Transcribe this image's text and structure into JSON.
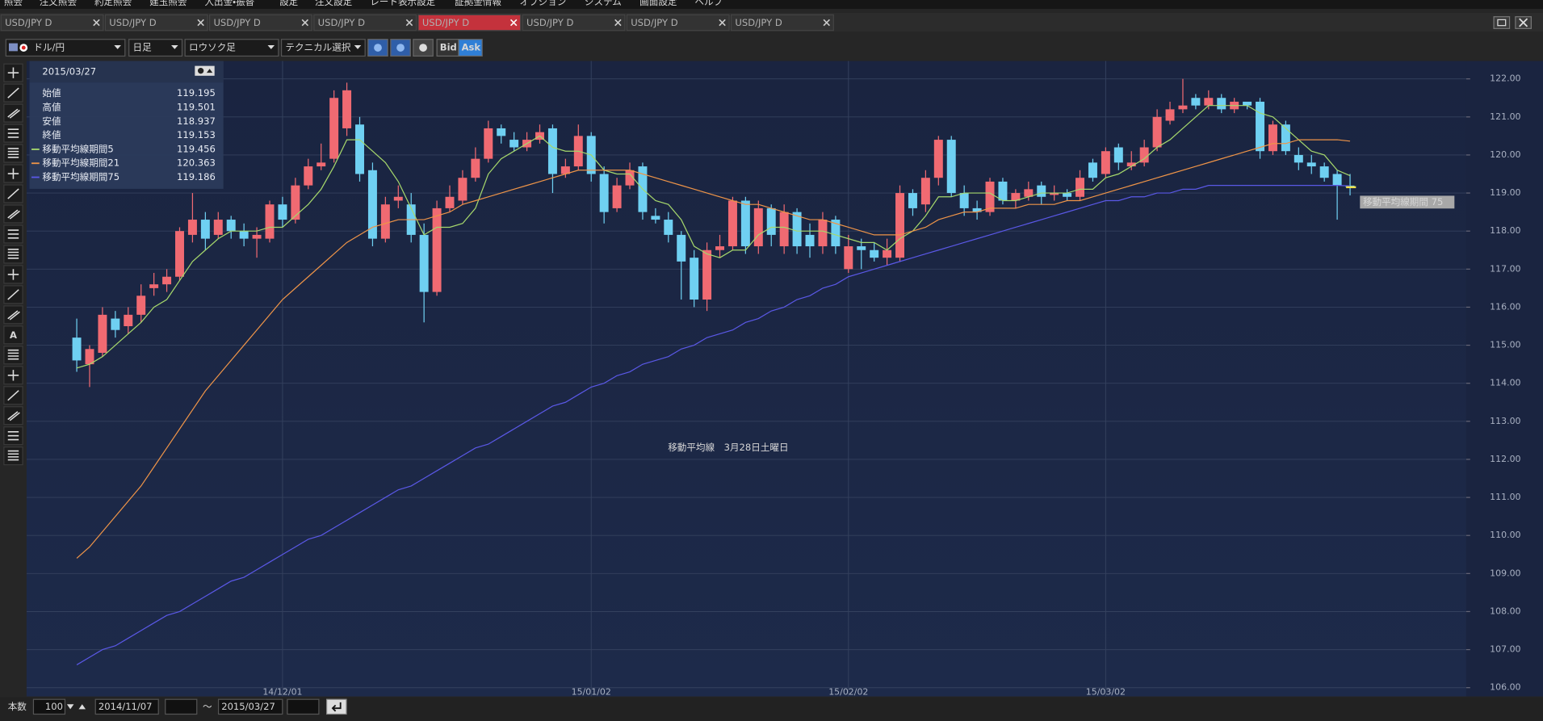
{
  "menu": [
    "照会",
    "注文照会",
    "約定照会",
    "建玉照会",
    "入出金・振替",
    "設定",
    "注文設定",
    "レート表示設定",
    "証拠金情報",
    "オプション",
    "システム",
    "画面設定",
    "ヘルプ"
  ],
  "tabs": [
    "USD/JPY D",
    "USD/JPY D",
    "USD/JPY D",
    "USD/JPY D",
    "USD/JPY D",
    "USD/JPY D",
    "USD/JPY D",
    "USD/JPY D"
  ],
  "active_tab": 4,
  "toolbar": {
    "pair": "ドル/円",
    "period": "日足",
    "chart_kind": "ロウソク足",
    "technical": "テクニカル選択",
    "bid": "Bid",
    "ask": "Ask",
    "text_tool": "A"
  },
  "info_panel": {
    "date": "2015/03/27",
    "rows": [
      {
        "label": "始値",
        "value": 119.195
      },
      {
        "label": "高値",
        "value": 119.501
      },
      {
        "label": "安値",
        "value": 118.937
      },
      {
        "label": "終値",
        "value": 119.153
      }
    ],
    "ma_values": [
      119.456,
      120.363,
      119.186
    ]
  },
  "footer": {
    "count_label": "本数",
    "count": 100,
    "from": "2014/11/07",
    "tilde": "～",
    "to": "2015/03/27"
  },
  "chart_data": {
    "type": "candlestick",
    "center_text": "移動平均線　3月28日土曜日",
    "annotation": "移動平均線期間 75",
    "up_color": "#f06a72",
    "down_color": "#6fd0f2",
    "grid": true,
    "ylim": [
      105.77,
      122.47
    ],
    "yticks": [
      {
        "value": 106,
        "label": "106.00"
      },
      {
        "value": 107,
        "label": "107.00"
      },
      {
        "value": 108,
        "label": "108.00"
      },
      {
        "value": 109,
        "label": "109.00"
      },
      {
        "value": 110,
        "label": "110.00"
      },
      {
        "value": 111,
        "label": "111.00"
      },
      {
        "value": 112,
        "label": "112.00"
      },
      {
        "value": 113,
        "label": "113.00"
      },
      {
        "value": 114,
        "label": "114.00"
      },
      {
        "value": 115,
        "label": "115.00"
      },
      {
        "value": 116,
        "label": "116.00"
      },
      {
        "value": 117,
        "label": "117.00"
      },
      {
        "value": 118,
        "label": "118.00"
      },
      {
        "value": 119,
        "label": "119.00"
      },
      {
        "value": 120,
        "label": "120.00"
      },
      {
        "value": 121,
        "label": "121.00"
      },
      {
        "value": 122,
        "label": "122.00"
      }
    ],
    "categories": [
      null,
      null,
      null,
      null,
      null,
      null,
      null,
      null,
      null,
      null,
      null,
      null,
      null,
      null,
      null,
      null,
      "14/12/01",
      null,
      null,
      null,
      null,
      null,
      null,
      null,
      null,
      null,
      null,
      null,
      null,
      null,
      null,
      null,
      null,
      null,
      null,
      null,
      null,
      null,
      null,
      null,
      "15/01/02",
      null,
      null,
      null,
      null,
      null,
      null,
      null,
      null,
      null,
      null,
      null,
      null,
      null,
      null,
      null,
      null,
      null,
      null,
      null,
      "15/02/02",
      null,
      null,
      null,
      null,
      null,
      null,
      null,
      null,
      null,
      null,
      null,
      null,
      null,
      null,
      null,
      null,
      null,
      null,
      null,
      "15/03/02",
      null,
      null,
      null,
      null,
      null,
      null,
      null,
      null,
      null,
      null,
      null,
      null,
      null,
      null,
      null,
      null,
      null,
      null,
      null
    ],
    "open": [
      115.2,
      114.5,
      114.8,
      115.7,
      115.5,
      115.8,
      116.5,
      116.6,
      116.8,
      117.9,
      118.3,
      117.9,
      118.3,
      118.0,
      117.8,
      117.8,
      118.7,
      118.3,
      119.2,
      119.7,
      119.9,
      120.7,
      120.8,
      119.6,
      117.8,
      118.8,
      118.7,
      117.9,
      116.4,
      118.6,
      118.8,
      119.4,
      119.9,
      120.7,
      120.4,
      120.2,
      120.4,
      120.7,
      119.5,
      119.7,
      120.5,
      119.5,
      118.6,
      119.2,
      119.7,
      118.4,
      118.3,
      117.9,
      117.3,
      116.2,
      117.5,
      117.6,
      118.8,
      117.6,
      118.6,
      117.6,
      118.5,
      117.9,
      117.6,
      118.3,
      117.0,
      117.6,
      117.5,
      117.3,
      117.3,
      119.0,
      118.7,
      119.4,
      120.4,
      119.0,
      118.6,
      118.5,
      119.3,
      118.8,
      118.9,
      119.2,
      118.95,
      119.0,
      118.9,
      119.8,
      119.5,
      120.2,
      119.7,
      119.8,
      120.2,
      120.9,
      121.2,
      121.5,
      121.3,
      121.5,
      121.2,
      121.4,
      121.4,
      120.1,
      120.8,
      120.0,
      119.8,
      119.7,
      119.5,
      119.195
    ],
    "high": [
      115.7,
      115.0,
      116.0,
      115.9,
      116.0,
      116.6,
      116.9,
      117.0,
      118.1,
      119.0,
      118.5,
      118.5,
      118.4,
      118.2,
      118.1,
      118.8,
      118.9,
      119.4,
      119.9,
      120.3,
      121.7,
      121.9,
      121.0,
      119.8,
      118.9,
      119.2,
      119.0,
      118.2,
      118.8,
      119.2,
      119.6,
      120.2,
      120.9,
      120.8,
      120.6,
      120.6,
      120.8,
      120.8,
      119.9,
      120.8,
      120.6,
      119.7,
      119.4,
      119.8,
      119.8,
      118.6,
      118.5,
      118.0,
      117.5,
      117.7,
      117.9,
      118.9,
      118.9,
      118.8,
      118.7,
      118.7,
      118.6,
      118.2,
      118.5,
      118.4,
      117.9,
      117.8,
      117.7,
      117.8,
      119.2,
      119.1,
      119.6,
      120.5,
      120.5,
      119.2,
      118.8,
      119.4,
      119.4,
      119.1,
      119.3,
      119.3,
      119.2,
      119.1,
      119.6,
      119.9,
      120.2,
      120.3,
      120.1,
      120.4,
      121.2,
      121.4,
      122.0,
      121.6,
      121.7,
      121.6,
      121.5,
      121.4,
      121.5,
      120.9,
      120.9,
      120.2,
      120.0,
      119.8,
      119.6,
      119.501
    ],
    "low": [
      114.3,
      113.9,
      114.7,
      115.2,
      115.3,
      115.6,
      116.3,
      116.4,
      116.7,
      117.7,
      117.5,
      117.8,
      117.8,
      117.6,
      117.3,
      117.7,
      118.1,
      118.2,
      119.1,
      119.6,
      119.8,
      120.5,
      119.3,
      117.6,
      117.7,
      118.6,
      117.7,
      115.6,
      116.3,
      118.5,
      118.7,
      119.3,
      119.8,
      120.3,
      120.1,
      120.1,
      120.3,
      119.0,
      119.4,
      119.6,
      119.3,
      118.2,
      118.5,
      119.1,
      118.3,
      118.2,
      117.7,
      116.2,
      116.0,
      115.9,
      117.3,
      117.5,
      117.4,
      117.4,
      117.6,
      117.4,
      117.4,
      117.3,
      117.4,
      117.4,
      116.9,
      117.0,
      117.2,
      117.1,
      117.2,
      118.4,
      118.5,
      119.2,
      118.9,
      118.4,
      118.3,
      118.4,
      118.7,
      118.6,
      118.8,
      118.7,
      118.8,
      118.8,
      118.8,
      119.3,
      119.4,
      119.6,
      119.6,
      119.7,
      120.1,
      120.8,
      121.1,
      121.2,
      121.2,
      121.1,
      121.1,
      121.2,
      119.9,
      120.0,
      120.0,
      119.6,
      119.5,
      119.3,
      118.3,
      118.937
    ],
    "close": [
      114.6,
      114.9,
      115.8,
      115.4,
      115.8,
      116.3,
      116.6,
      116.8,
      118.0,
      118.3,
      117.8,
      118.3,
      118.0,
      117.8,
      117.9,
      118.7,
      118.3,
      119.2,
      119.7,
      119.8,
      121.5,
      121.7,
      119.5,
      117.8,
      118.7,
      118.9,
      117.9,
      116.4,
      118.6,
      118.9,
      119.4,
      119.9,
      120.7,
      120.5,
      120.2,
      120.4,
      120.6,
      119.5,
      119.7,
      120.5,
      119.5,
      118.5,
      119.2,
      119.6,
      118.5,
      118.3,
      117.9,
      117.2,
      116.2,
      117.5,
      117.6,
      118.8,
      117.6,
      118.6,
      117.9,
      118.5,
      117.6,
      117.6,
      118.3,
      117.6,
      117.6,
      117.5,
      117.3,
      117.5,
      119.0,
      118.6,
      119.4,
      120.4,
      119.0,
      118.6,
      118.5,
      119.3,
      118.8,
      119.0,
      119.1,
      118.9,
      119.0,
      118.9,
      119.4,
      119.4,
      120.1,
      119.8,
      119.8,
      120.2,
      121.0,
      121.2,
      121.3,
      121.3,
      121.5,
      121.2,
      121.4,
      121.3,
      120.1,
      120.8,
      120.1,
      119.8,
      119.7,
      119.4,
      119.2,
      119.153
    ],
    "series": [
      {
        "name": "移動平均線期間5",
        "color": "#a6d86c",
        "values": [
          114.4,
          114.5,
          114.7,
          115.0,
          115.3,
          115.6,
          116.0,
          116.2,
          116.7,
          117.2,
          117.5,
          117.8,
          118.0,
          118.0,
          118.0,
          118.1,
          118.1,
          118.4,
          118.7,
          119.1,
          119.7,
          120.4,
          120.4,
          120.1,
          119.8,
          119.3,
          118.6,
          117.9,
          118.1,
          118.1,
          118.2,
          118.6,
          119.5,
          119.9,
          120.1,
          120.3,
          120.5,
          120.2,
          120.1,
          120.1,
          120.0,
          119.6,
          119.5,
          119.5,
          119.1,
          118.8,
          118.7,
          118.3,
          117.6,
          117.4,
          117.3,
          117.5,
          117.5,
          117.9,
          118.1,
          118.1,
          118.0,
          118.0,
          118.0,
          117.9,
          117.8,
          117.7,
          117.7,
          117.5,
          117.8,
          118.0,
          118.4,
          118.9,
          118.9,
          119.0,
          119.0,
          119.0,
          118.8,
          118.8,
          118.9,
          119.0,
          119.0,
          119.0,
          119.1,
          119.1,
          119.4,
          119.5,
          119.7,
          119.9,
          120.2,
          120.4,
          120.7,
          121.0,
          121.3,
          121.3,
          121.3,
          121.3,
          121.1,
          121.0,
          120.7,
          120.4,
          120.1,
          120.0,
          119.6,
          119.456
        ]
      },
      {
        "name": "移動平均線期間21",
        "color": "#ee9448",
        "values": [
          109.4,
          109.7,
          110.1,
          110.5,
          110.9,
          111.3,
          111.8,
          112.3,
          112.8,
          113.3,
          113.8,
          114.2,
          114.6,
          115.0,
          115.4,
          115.8,
          116.2,
          116.5,
          116.8,
          117.1,
          117.4,
          117.7,
          117.9,
          118.1,
          118.2,
          118.3,
          118.3,
          118.3,
          118.4,
          118.5,
          118.7,
          118.8,
          118.9,
          119.0,
          119.1,
          119.2,
          119.3,
          119.4,
          119.5,
          119.6,
          119.6,
          119.6,
          119.6,
          119.6,
          119.5,
          119.4,
          119.3,
          119.2,
          119.1,
          119.0,
          118.9,
          118.8,
          118.7,
          118.7,
          118.6,
          118.5,
          118.4,
          118.3,
          118.3,
          118.2,
          118.1,
          118.0,
          117.9,
          117.9,
          117.9,
          118.0,
          118.1,
          118.3,
          118.4,
          118.5,
          118.5,
          118.6,
          118.6,
          118.6,
          118.7,
          118.7,
          118.7,
          118.8,
          118.8,
          118.9,
          119.0,
          119.1,
          119.2,
          119.3,
          119.4,
          119.5,
          119.6,
          119.7,
          119.8,
          119.9,
          120.0,
          120.1,
          120.2,
          120.3,
          120.3,
          120.4,
          120.4,
          120.4,
          120.4,
          120.363
        ]
      },
      {
        "name": "移動平均線期間75",
        "color": "#5a58e6",
        "values": [
          106.6,
          106.8,
          107.0,
          107.1,
          107.3,
          107.5,
          107.7,
          107.9,
          108.0,
          108.2,
          108.4,
          108.6,
          108.8,
          108.9,
          109.1,
          109.3,
          109.5,
          109.7,
          109.9,
          110.0,
          110.2,
          110.4,
          110.6,
          110.8,
          111.0,
          111.2,
          111.3,
          111.5,
          111.7,
          111.9,
          112.1,
          112.3,
          112.4,
          112.6,
          112.8,
          113.0,
          113.2,
          113.4,
          113.5,
          113.7,
          113.9,
          114.0,
          114.2,
          114.3,
          114.5,
          114.6,
          114.7,
          114.9,
          115.0,
          115.2,
          115.3,
          115.4,
          115.6,
          115.7,
          115.9,
          116.0,
          116.2,
          116.3,
          116.5,
          116.6,
          116.8,
          116.9,
          117.0,
          117.1,
          117.2,
          117.3,
          117.4,
          117.5,
          117.6,
          117.7,
          117.8,
          117.9,
          118.0,
          118.1,
          118.2,
          118.3,
          118.4,
          118.5,
          118.6,
          118.7,
          118.8,
          118.8,
          118.9,
          118.9,
          119.0,
          119.0,
          119.1,
          119.1,
          119.2,
          119.2,
          119.2,
          119.2,
          119.2,
          119.2,
          119.2,
          119.2,
          119.2,
          119.2,
          119.2,
          119.186
        ]
      }
    ]
  }
}
